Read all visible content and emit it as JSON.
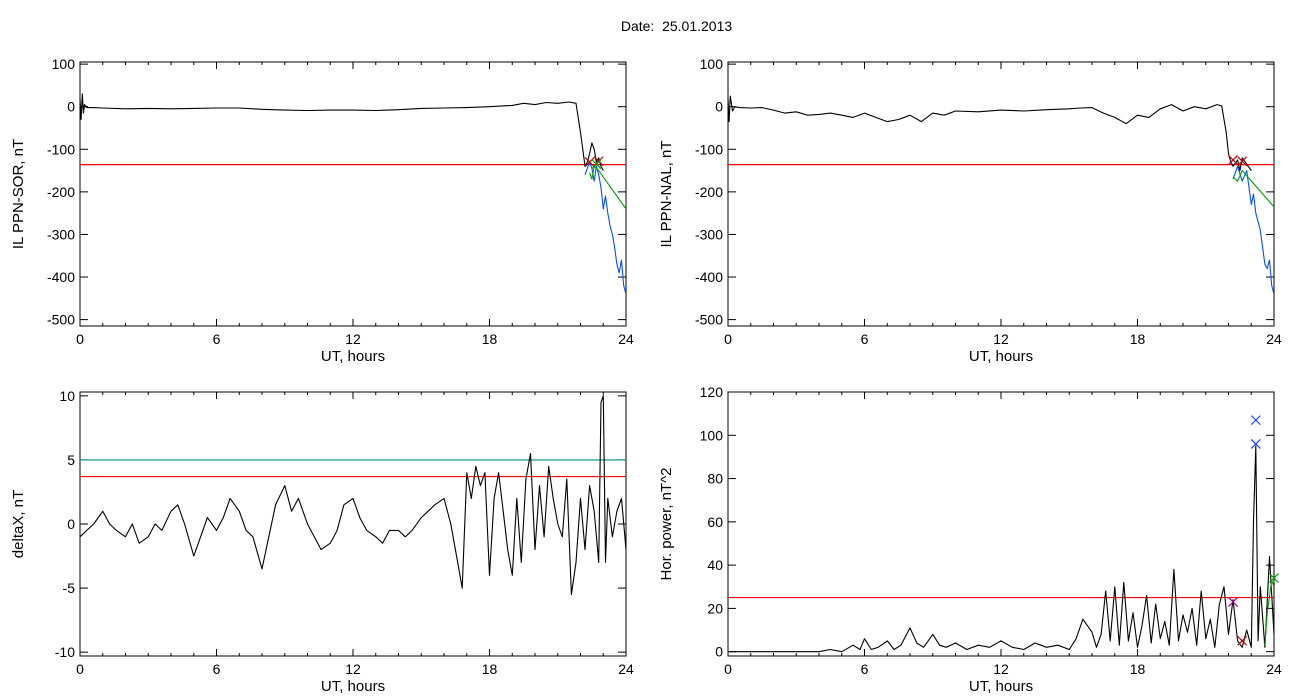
{
  "title": "Date:  25.01.2013",
  "colors": {
    "trace": "#000000",
    "threshold": "#ff0000",
    "threshold2": "#008b8b",
    "blue": "#0050ff",
    "green": "#00a000",
    "marker_red": "#c00000",
    "marker_blue": "#2040ff",
    "marker_purple": "#a000a0"
  },
  "chart_data": [
    {
      "type": "line",
      "xlabel": "UT, hours",
      "ylabel": "IL PPN-SOR, nT",
      "xlim": [
        0,
        24
      ],
      "ylim": [
        -515,
        105
      ],
      "xticks": [
        0,
        6,
        12,
        18,
        24
      ],
      "yticks": [
        100,
        0,
        -100,
        -200,
        -300,
        -400,
        -500
      ],
      "threshold": -136,
      "series": [
        {
          "color": "black",
          "x": [
            0,
            0.05,
            0.1,
            0.15,
            0.2,
            0.3,
            0.5,
            1,
            2,
            3,
            4,
            5,
            6,
            7,
            8,
            9,
            10,
            11,
            12,
            13,
            14,
            15,
            16,
            17,
            18,
            19,
            19.5,
            20,
            20.5,
            21,
            21.5,
            21.8,
            22.0,
            22.1,
            22.2,
            22.3,
            22.4,
            22.5,
            22.6,
            22.7,
            22.8,
            22.9,
            23.0
          ],
          "y": [
            18,
            -30,
            30,
            -15,
            5,
            -2,
            -2,
            -3,
            -5,
            -4,
            -5,
            -4,
            -3,
            -3,
            -6,
            -8,
            -9,
            -8,
            -8,
            -9,
            -7,
            -4,
            -3,
            -2,
            0,
            3,
            8,
            5,
            10,
            8,
            11,
            8,
            -60,
            -100,
            -140,
            -130,
            -110,
            -85,
            -100,
            -130,
            -120,
            -140,
            -150
          ]
        },
        {
          "color": "blue",
          "x": [
            22.2,
            22.4,
            22.5,
            22.6,
            22.7,
            22.8,
            22.9,
            23.0,
            23.1,
            23.2,
            23.3,
            23.4,
            23.5,
            23.6,
            23.7,
            23.8,
            23.9,
            24.0
          ],
          "y": [
            -160,
            -130,
            -145,
            -175,
            -140,
            -160,
            -190,
            -240,
            -210,
            -250,
            -280,
            -300,
            -330,
            -370,
            -390,
            -360,
            -420,
            -440
          ]
        },
        {
          "color": "green",
          "x": [
            22.4,
            22.5,
            22.6,
            22.8,
            24.0
          ],
          "y": [
            -155,
            -170,
            -140,
            -150,
            -240
          ]
        }
      ],
      "markers": [
        {
          "x": 22.4,
          "y": -130,
          "color": "red"
        },
        {
          "x": 22.8,
          "y": -128,
          "color": "red"
        },
        {
          "x": 22.7,
          "y": -135,
          "color": "green"
        }
      ]
    },
    {
      "type": "line",
      "xlabel": "UT, hours",
      "ylabel": "IL PPN-NAL, nT",
      "xlim": [
        0,
        24
      ],
      "ylim": [
        -515,
        105
      ],
      "xticks": [
        0,
        6,
        12,
        18,
        24
      ],
      "yticks": [
        100,
        0,
        -100,
        -200,
        -300,
        -400,
        -500
      ],
      "threshold": -136,
      "series": [
        {
          "color": "black",
          "x": [
            0,
            0.05,
            0.1,
            0.2,
            0.3,
            0.5,
            1,
            1.5,
            2,
            2.5,
            3,
            3.5,
            4,
            4.5,
            5,
            5.5,
            6,
            6.5,
            7,
            7.5,
            8,
            8.5,
            9,
            9.5,
            10,
            11,
            12,
            13,
            14,
            15,
            15.5,
            16,
            16.5,
            17,
            17.5,
            18,
            18.5,
            19,
            19.5,
            20,
            20.5,
            21,
            21.5,
            21.7,
            21.9,
            22.0,
            22.1,
            22.2,
            22.4,
            22.5,
            22.6,
            22.8,
            23.0
          ],
          "y": [
            20,
            -35,
            25,
            -10,
            0,
            -2,
            -3,
            -2,
            -8,
            -15,
            -12,
            -20,
            -18,
            -15,
            -20,
            -25,
            -15,
            -25,
            -35,
            -30,
            -20,
            -35,
            -15,
            -20,
            -10,
            -12,
            -8,
            -10,
            -7,
            -5,
            -3,
            -2,
            -15,
            -25,
            -40,
            -20,
            -25,
            -5,
            5,
            -10,
            0,
            -5,
            5,
            2,
            -60,
            -110,
            -130,
            -140,
            -125,
            -150,
            -120,
            -135,
            -150
          ]
        },
        {
          "color": "blue",
          "x": [
            22.2,
            22.4,
            22.6,
            22.8,
            22.9,
            23.0,
            23.1,
            23.2,
            23.3,
            23.4,
            23.5,
            23.6,
            23.7,
            23.8,
            23.9,
            24.0
          ],
          "y": [
            -170,
            -140,
            -175,
            -150,
            -190,
            -230,
            -205,
            -250,
            -270,
            -290,
            -330,
            -370,
            -380,
            -360,
            -420,
            -440
          ]
        },
        {
          "color": "green",
          "x": [
            22.2,
            22.4,
            22.6,
            24.0
          ],
          "y": [
            -165,
            -175,
            -150,
            -235
          ]
        }
      ],
      "markers": [
        {
          "x": 22.2,
          "y": -125,
          "color": "red"
        },
        {
          "x": 22.6,
          "y": -128,
          "color": "red"
        }
      ]
    },
    {
      "type": "line",
      "xlabel": "UT, hours",
      "ylabel": "deltaX, nT",
      "xlim": [
        0,
        24
      ],
      "ylim": [
        -10.3,
        10.3
      ],
      "xticks": [
        0,
        6,
        12,
        18,
        24
      ],
      "yticks": [
        10,
        5,
        0,
        -5,
        -10
      ],
      "threshold": 3.7,
      "threshold2": 5.0,
      "series": [
        {
          "color": "black",
          "x": [
            0,
            0.3,
            0.6,
            1,
            1.3,
            1.6,
            2,
            2.3,
            2.6,
            3,
            3.3,
            3.6,
            4,
            4.3,
            4.6,
            5,
            5.3,
            5.6,
            6,
            6.3,
            6.6,
            7,
            7.3,
            7.6,
            8,
            8.3,
            8.6,
            9,
            9.3,
            9.6,
            10,
            10.3,
            10.6,
            11,
            11.3,
            11.6,
            12,
            12.3,
            12.6,
            13,
            13.3,
            13.6,
            14,
            14.3,
            14.6,
            15,
            15.3,
            15.6,
            16,
            16.3,
            16.6,
            16.8,
            17,
            17.2,
            17.4,
            17.6,
            17.8,
            18,
            18.2,
            18.4,
            18.6,
            18.8,
            19,
            19.2,
            19.4,
            19.6,
            19.8,
            20,
            20.2,
            20.4,
            20.6,
            20.8,
            21,
            21.2,
            21.4,
            21.6,
            21.8,
            22,
            22.2,
            22.4,
            22.6,
            22.8,
            22.9,
            23.0,
            23.1,
            23.2,
            23.4,
            23.6,
            23.8,
            24.0
          ],
          "y": [
            -1,
            -0.5,
            0,
            1,
            0,
            -0.5,
            -1,
            0,
            -1.5,
            -1,
            0,
            -0.5,
            1,
            1.5,
            0,
            -2.5,
            -1,
            0.5,
            -0.5,
            0.5,
            2,
            1,
            -0.5,
            -1,
            -3.5,
            -1,
            1.5,
            3,
            1,
            2,
            0,
            -1,
            -2,
            -1.5,
            -0.5,
            1.5,
            2,
            0.5,
            -0.5,
            -1,
            -1.5,
            -0.5,
            -0.5,
            -1,
            -0.5,
            0.5,
            1,
            1.5,
            2,
            0,
            -3,
            -5,
            4,
            2,
            4.5,
            3,
            4,
            -4,
            2,
            4,
            1,
            -2,
            -4,
            2,
            -3,
            3.5,
            5.5,
            -2,
            3,
            -1,
            4.5,
            2,
            0,
            -1,
            3.5,
            -5.5,
            -3,
            2,
            -2,
            3,
            1,
            -3,
            9.5,
            10,
            -3,
            2,
            -1,
            1,
            2,
            -2
          ]
        }
      ],
      "markers": []
    },
    {
      "type": "line",
      "xlabel": "UT, hours",
      "ylabel": "Hor. power, nT^2",
      "xlim": [
        0,
        24
      ],
      "ylim": [
        -2,
        120
      ],
      "xticks": [
        0,
        6,
        12,
        18,
        24
      ],
      "yticks": [
        120,
        100,
        80,
        60,
        40,
        20,
        0
      ],
      "threshold": 25,
      "series": [
        {
          "color": "black",
          "x": [
            0,
            1,
            2,
            3,
            4,
            4.5,
            5,
            5.5,
            5.8,
            6,
            6.3,
            6.6,
            7,
            7.3,
            7.6,
            8,
            8.3,
            8.6,
            9,
            9.3,
            9.6,
            10,
            10.5,
            11,
            11.5,
            12,
            12.5,
            13,
            13.5,
            14,
            14.5,
            15,
            15.3,
            15.6,
            16,
            16.2,
            16.4,
            16.6,
            16.8,
            17,
            17.2,
            17.4,
            17.6,
            17.8,
            18,
            18.2,
            18.4,
            18.6,
            18.8,
            19,
            19.2,
            19.4,
            19.6,
            19.8,
            20,
            20.2,
            20.4,
            20.6,
            20.8,
            21,
            21.2,
            21.4,
            21.6,
            21.8,
            22,
            22.2,
            22.4,
            22.6,
            22.8,
            23.0,
            23.1,
            23.2,
            23.3,
            23.4,
            23.6,
            23.8,
            24.0
          ],
          "y": [
            0,
            0,
            0,
            0,
            0,
            1,
            0,
            3,
            1,
            6,
            1,
            2,
            5,
            1,
            3,
            11,
            4,
            2,
            8,
            3,
            2,
            4,
            1,
            3,
            2,
            5,
            2,
            1,
            4,
            2,
            3,
            1,
            6,
            15,
            9,
            2,
            8,
            28,
            5,
            30,
            3,
            32,
            5,
            18,
            2,
            12,
            26,
            4,
            22,
            6,
            14,
            3,
            38,
            5,
            17,
            9,
            20,
            3,
            28,
            6,
            15,
            2,
            22,
            30,
            8,
            24,
            5,
            2,
            10,
            2,
            60,
            95,
            5,
            30,
            2,
            44,
            8
          ]
        },
        {
          "color": "green",
          "x": [
            23.6,
            23.7,
            23.9,
            24.0
          ],
          "y": [
            3,
            18,
            33,
            30
          ]
        }
      ],
      "markers": [
        {
          "x": 23.2,
          "y": 107,
          "color": "blue"
        },
        {
          "x": 23.2,
          "y": 96,
          "color": "blue"
        },
        {
          "x": 22.2,
          "y": 23,
          "color": "purple"
        },
        {
          "x": 22.6,
          "y": 5,
          "color": "red"
        },
        {
          "x": 24.0,
          "y": 34,
          "color": "green"
        }
      ]
    }
  ]
}
